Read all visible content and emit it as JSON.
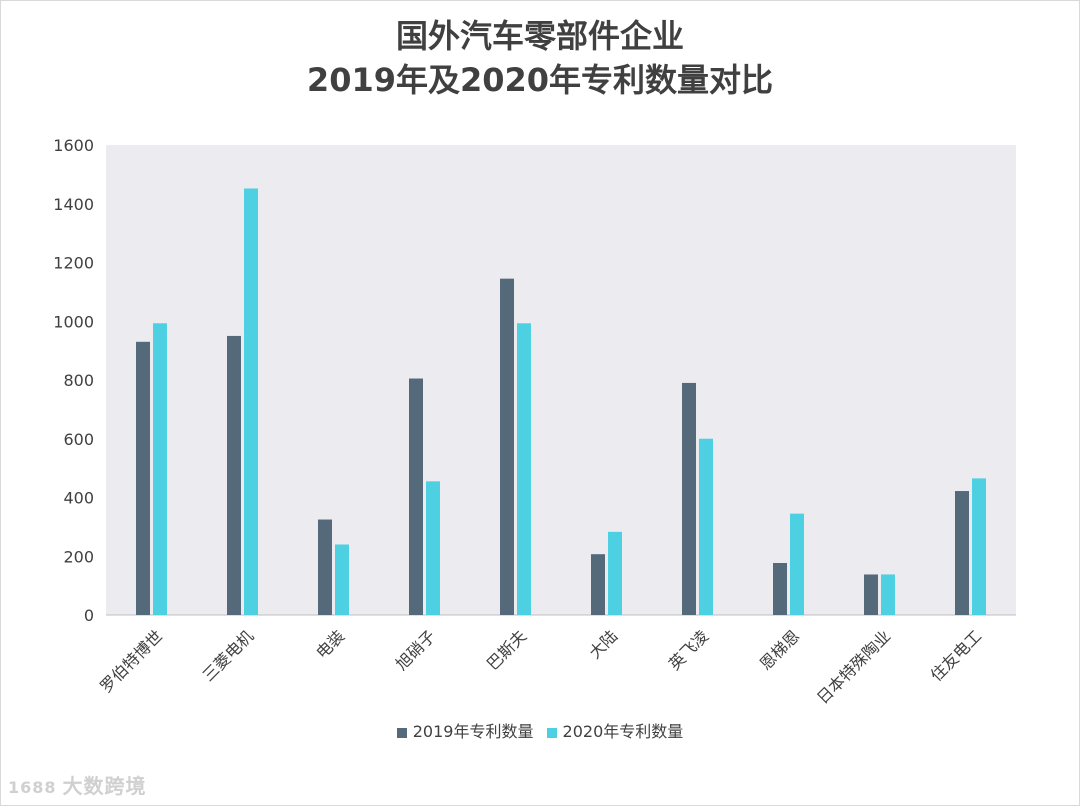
{
  "chart_data": {
    "type": "bar",
    "title_lines": [
      "国外汽车零部件企业",
      "2019年及2020年专利数量对比"
    ],
    "categories": [
      "罗伯特博世",
      "三菱电机",
      "电装",
      "旭硝子",
      "巴斯夫",
      "大陆",
      "英飞凌",
      "恩梯恩",
      "日本特殊陶业",
      "住友电工"
    ],
    "series": [
      {
        "name": "2019年专利数量",
        "color": "#546a7b",
        "values": [
          930,
          950,
          325,
          805,
          1145,
          207,
          790,
          177,
          138,
          422
        ]
      },
      {
        "name": "2020年专利数量",
        "color": "#4dd0e1",
        "values": [
          993,
          1452,
          240,
          455,
          993,
          283,
          600,
          345,
          138,
          465
        ]
      }
    ],
    "ylim": [
      0,
      1600
    ],
    "yticks": [
      0,
      200,
      400,
      600,
      800,
      1000,
      1200,
      1400,
      1600
    ],
    "xlabel": "",
    "ylabel": "",
    "grid": false,
    "plot_background": "#ebebf0",
    "legend_position": "bottom"
  },
  "watermark": {
    "mark": "1688",
    "text": "大数跨境"
  }
}
